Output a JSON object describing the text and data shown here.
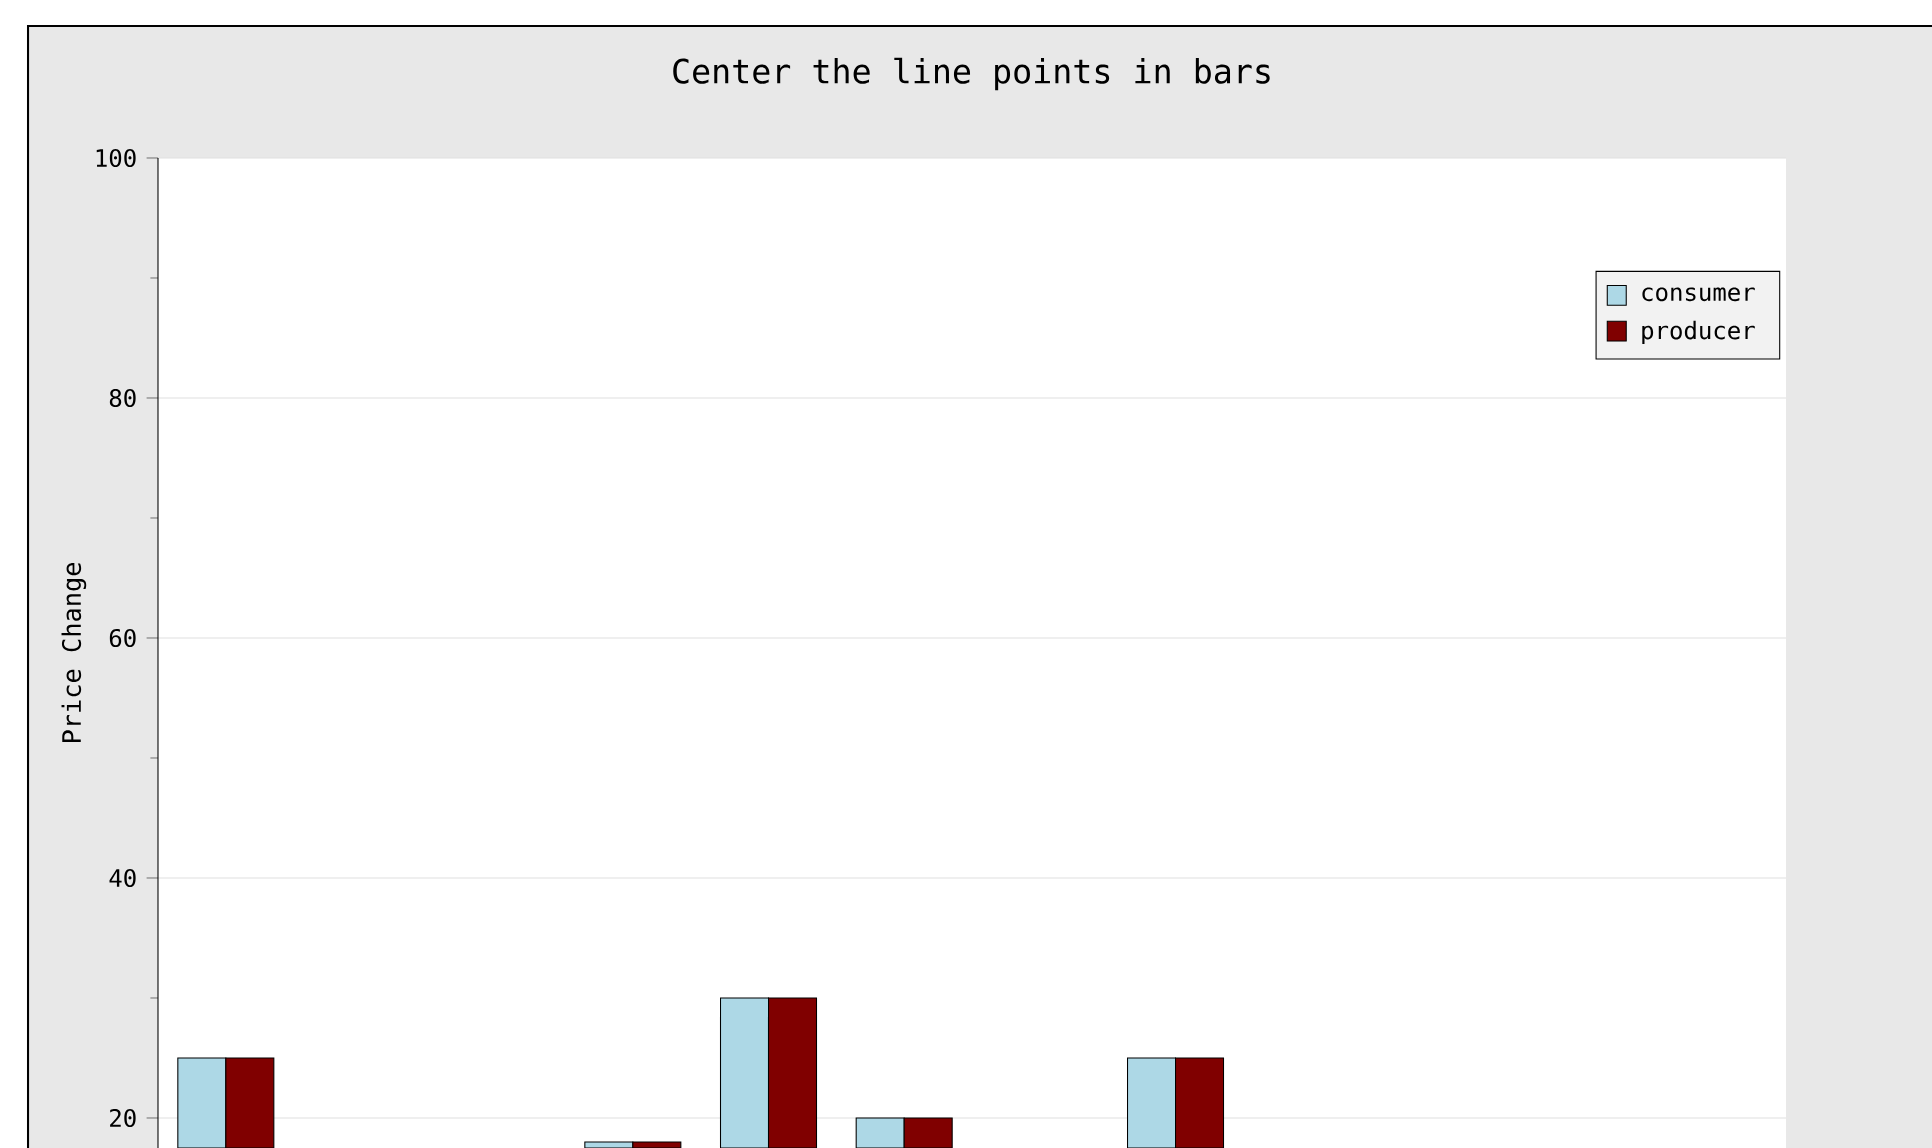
{
  "chart_data": {
    "type": "bar",
    "title": "Center the line points in bars",
    "ylabel": "Price Change",
    "categories": [
      null,
      null,
      null,
      null,
      null,
      null,
      null,
      null,
      null,
      null,
      null,
      null
    ],
    "series": [
      {
        "name": "consumer",
        "color": "#add8e6",
        "values": [
          25,
          null,
          null,
          18,
          30,
          20,
          null,
          25,
          null,
          null,
          null,
          null
        ]
      },
      {
        "name": "producer",
        "color": "#800000",
        "values": [
          25,
          null,
          null,
          18,
          30,
          20,
          null,
          25,
          null,
          null,
          null,
          null
        ]
      }
    ],
    "ylim": [
      17.5,
      100
    ],
    "yticks": [
      20,
      40,
      60,
      80,
      100
    ],
    "grid": "y",
    "legend": "top right"
  }
}
